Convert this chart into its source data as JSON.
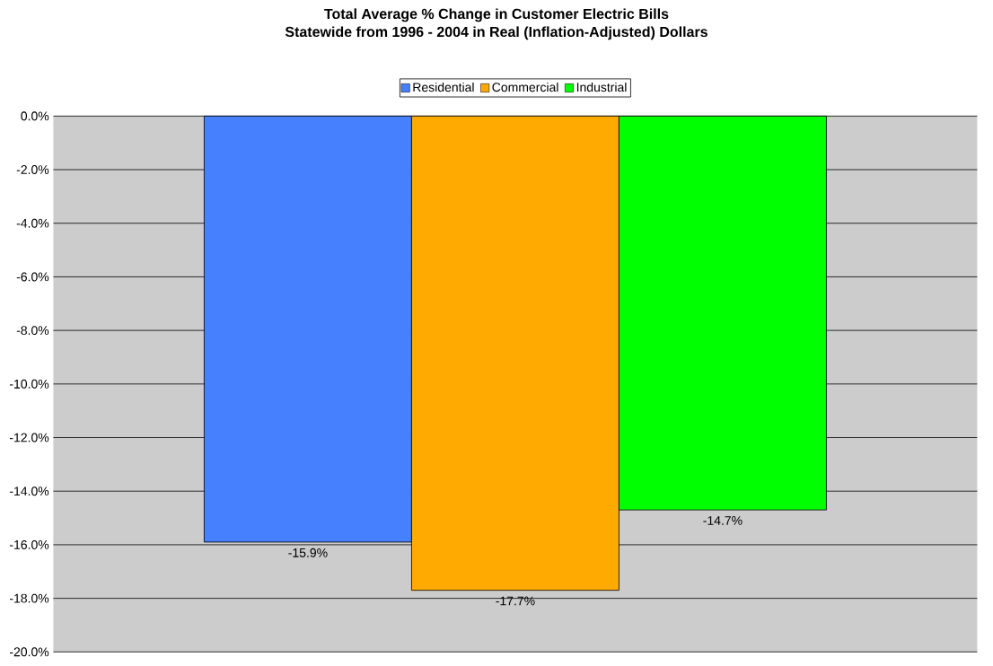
{
  "chart_data": {
    "type": "bar",
    "title": "Total Average % Change in Customer Electric Bills",
    "subtitle": "Statewide from 1996 - 2004 in Real (Inflation-Adjusted) Dollars",
    "categories": [
      null
    ],
    "series": [
      {
        "name": "Residential",
        "color": "#4680ff",
        "values": [
          -15.9
        ],
        "value_labels": [
          "-15.9%"
        ]
      },
      {
        "name": "Commercial",
        "color": "#ffaa00",
        "values": [
          -17.7
        ],
        "value_labels": [
          "-17.7%"
        ]
      },
      {
        "name": "Industrial",
        "color": "#00ff00",
        "values": [
          -14.7
        ],
        "value_labels": [
          "-14.7%"
        ]
      }
    ],
    "ylim": [
      -20,
      0
    ],
    "yticks": [
      {
        "value": 0,
        "label": "0.0%"
      },
      {
        "value": -2,
        "label": "-2.0%"
      },
      {
        "value": -4,
        "label": "-4.0%"
      },
      {
        "value": -6,
        "label": "-6.0%"
      },
      {
        "value": -8,
        "label": "-8.0%"
      },
      {
        "value": -10,
        "label": "-10.0%"
      },
      {
        "value": -12,
        "label": "-12.0%"
      },
      {
        "value": -14,
        "label": "-14.0%"
      },
      {
        "value": -16,
        "label": "-16.0%"
      },
      {
        "value": -18,
        "label": "-18.0%"
      },
      {
        "value": -20,
        "label": "-20.0%"
      }
    ],
    "grid": "y",
    "legend": "top"
  }
}
